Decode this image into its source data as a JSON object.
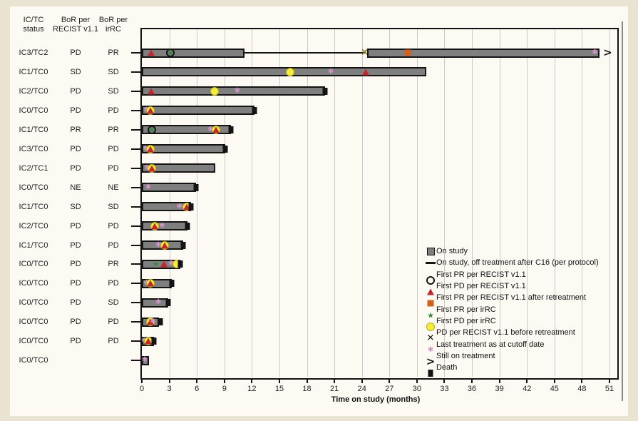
{
  "window": {
    "background": "#eae3d1",
    "card_background": "#fcfaf3"
  },
  "colors": {
    "bar_fill": "#7f7f7f",
    "bar_border": "#141414",
    "grid": "#c9c9c9",
    "pd_recist_red": "#c1272d",
    "pr_retreat_orange": "#d2611e",
    "pr_irrc_green": "#338a3e",
    "pd_irrc_yellow": "#f2ee3b",
    "last_treatment_pink": "#d294c4",
    "pd_before_retreat_olive": "#8f8a15",
    "black": "#141414"
  },
  "chart_data": {
    "type": "bar",
    "variant": "swimmer-plot",
    "title": "",
    "xlabel": "Time on study (months)",
    "xlim": [
      0,
      51
    ],
    "xtick_step": 3,
    "grid": true,
    "legend_position": "bottom-right",
    "columns": [
      [
        "IC/TC",
        "status"
      ],
      [
        "BoR per",
        "RECIST v1.1"
      ],
      [
        "BoR per",
        "irRC"
      ]
    ],
    "legend": [
      {
        "marker": "on_study",
        "label": "On study"
      },
      {
        "marker": "off_treatment_line",
        "label": "On study, off treatment after C16 (per protocol)"
      },
      {
        "marker": "pr_recist",
        "label": "First PR per RECIST v1.1"
      },
      {
        "marker": "pd_recist",
        "label": "First PD per RECIST v1.1"
      },
      {
        "marker": "pr_recist_retreat",
        "label": "First PR per RECIST v1.1 after retreatment"
      },
      {
        "marker": "pr_irrc",
        "label": "First PR per irRC"
      },
      {
        "marker": "pd_irrc",
        "label": "First PD per irRC"
      },
      {
        "marker": "pd_before_retreat",
        "label": "PD per RECIST v1.1 before retreatment"
      },
      {
        "marker": "last_treatment",
        "label": "Last treatment as at cutoff date"
      },
      {
        "marker": "still_on_treatment",
        "label": "Still on treatment"
      },
      {
        "marker": "death",
        "label": "Death"
      }
    ],
    "patients": [
      {
        "ic_tc": "IC3/TC2",
        "bor_recist": "PD",
        "bor_irrc": "PR",
        "bars": [
          [
            0,
            11.2
          ],
          [
            24.6,
            49.9
          ]
        ],
        "off_treatment_line": [
          11.2,
          24.3
        ],
        "markers": [
          {
            "t": "pd_recist",
            "x": 1.0
          },
          {
            "t": "pr_irrc",
            "x": 3.1
          },
          {
            "t": "pr_recist",
            "x": 3.1
          },
          {
            "t": "pd_before_retreat",
            "x": 24.3
          },
          {
            "t": "pr_recist_retreat",
            "x": 29.0
          },
          {
            "t": "last_treatment",
            "x": 49.4
          },
          {
            "t": "still_on_treatment",
            "x": 50.8
          }
        ]
      },
      {
        "ic_tc": "IC1/TC0",
        "bor_recist": "SD",
        "bor_irrc": "SD",
        "bars": [
          [
            0,
            31.0
          ]
        ],
        "markers": [
          {
            "t": "pd_irrc",
            "x": 16.2
          },
          {
            "t": "last_treatment",
            "x": 20.6
          },
          {
            "t": "pd_recist",
            "x": 24.4
          }
        ]
      },
      {
        "ic_tc": "IC2/TC0",
        "bor_recist": "PD",
        "bor_irrc": "SD",
        "bars": [
          [
            0,
            20.0
          ]
        ],
        "markers": [
          {
            "t": "pd_recist",
            "x": 1.0
          },
          {
            "t": "pd_irrc",
            "x": 7.9
          },
          {
            "t": "last_treatment",
            "x": 10.4
          },
          {
            "t": "death",
            "x": 20.0
          }
        ]
      },
      {
        "ic_tc": "IC0/TC0",
        "bor_recist": "PD",
        "bor_irrc": "PD",
        "bars": [
          [
            0,
            12.3
          ]
        ],
        "markers": [
          {
            "t": "last_treatment",
            "x": 0.5
          },
          {
            "t": "pd_irrc",
            "x": 0.9
          },
          {
            "t": "pd_recist",
            "x": 0.9
          },
          {
            "t": "death",
            "x": 12.3
          }
        ]
      },
      {
        "ic_tc": "IC1/TC0",
        "bor_recist": "PR",
        "bor_irrc": "PR",
        "bars": [
          [
            0,
            9.7
          ]
        ],
        "markers": [
          {
            "t": "pr_irrc",
            "x": 1.1
          },
          {
            "t": "pr_recist",
            "x": 1.1
          },
          {
            "t": "last_treatment",
            "x": 7.5
          },
          {
            "t": "pd_irrc",
            "x": 8.1
          },
          {
            "t": "pd_recist",
            "x": 8.1
          },
          {
            "t": "death",
            "x": 9.7
          }
        ]
      },
      {
        "ic_tc": "IC3/TC0",
        "bor_recist": "PD",
        "bor_irrc": "PD",
        "bars": [
          [
            0,
            9.1
          ]
        ],
        "markers": [
          {
            "t": "last_treatment",
            "x": 0.4
          },
          {
            "t": "pd_irrc",
            "x": 0.9
          },
          {
            "t": "pd_recist",
            "x": 0.9
          },
          {
            "t": "death",
            "x": 9.1
          }
        ]
      },
      {
        "ic_tc": "IC2/TC1",
        "bor_recist": "PD",
        "bor_irrc": "PD",
        "bars": [
          [
            0,
            8.0
          ]
        ],
        "markers": [
          {
            "t": "last_treatment",
            "x": 0.6
          },
          {
            "t": "pd_irrc",
            "x": 1.1
          },
          {
            "t": "pd_recist",
            "x": 1.1
          }
        ]
      },
      {
        "ic_tc": "IC0/TC0",
        "bor_recist": "NE",
        "bor_irrc": "NE",
        "bars": [
          [
            0,
            5.9
          ]
        ],
        "markers": [
          {
            "t": "last_treatment",
            "x": 0.7
          },
          {
            "t": "death",
            "x": 5.9
          }
        ]
      },
      {
        "ic_tc": "IC1/TC0",
        "bor_recist": "SD",
        "bor_irrc": "SD",
        "bars": [
          [
            0,
            5.4
          ]
        ],
        "markers": [
          {
            "t": "last_treatment",
            "x": 4.1
          },
          {
            "t": "pd_irrc",
            "x": 4.9
          },
          {
            "t": "pd_recist",
            "x": 4.9
          },
          {
            "t": "death",
            "x": 5.4
          }
        ]
      },
      {
        "ic_tc": "IC2/TC0",
        "bor_recist": "PD",
        "bor_irrc": "PD",
        "bars": [
          [
            0,
            5.0
          ]
        ],
        "markers": [
          {
            "t": "pd_irrc",
            "x": 1.4
          },
          {
            "t": "pd_recist",
            "x": 1.4
          },
          {
            "t": "last_treatment",
            "x": 2.2
          },
          {
            "t": "death",
            "x": 5.0
          }
        ]
      },
      {
        "ic_tc": "IC1/TC0",
        "bor_recist": "PD",
        "bor_irrc": "PD",
        "bars": [
          [
            0,
            4.5
          ]
        ],
        "markers": [
          {
            "t": "last_treatment",
            "x": 1.8
          },
          {
            "t": "pd_irrc",
            "x": 2.5
          },
          {
            "t": "pd_recist",
            "x": 2.5
          },
          {
            "t": "death",
            "x": 4.5
          }
        ]
      },
      {
        "ic_tc": "IC0/TC0",
        "bor_recist": "PD",
        "bor_irrc": "PR",
        "bars": [
          [
            0,
            4.2
          ]
        ],
        "markers": [
          {
            "t": "pr_irrc",
            "x": 1.5
          },
          {
            "t": "pd_recist",
            "x": 2.4
          },
          {
            "t": "last_treatment",
            "x": 3.2
          },
          {
            "t": "pd_irrc",
            "x": 3.8
          },
          {
            "t": "death",
            "x": 4.2
          }
        ]
      },
      {
        "ic_tc": "IC0/TC0",
        "bor_recist": "PD",
        "bor_irrc": "PD",
        "bars": [
          [
            0,
            3.3
          ]
        ],
        "markers": [
          {
            "t": "last_treatment",
            "x": 0.5
          },
          {
            "t": "pd_irrc",
            "x": 0.9
          },
          {
            "t": "pd_recist",
            "x": 0.9
          },
          {
            "t": "death",
            "x": 3.3
          }
        ]
      },
      {
        "ic_tc": "IC0/TC0",
        "bor_recist": "PD",
        "bor_irrc": "SD",
        "bars": [
          [
            0,
            2.9
          ]
        ],
        "markers": [
          {
            "t": "last_treatment",
            "x": 1.8
          },
          {
            "t": "death",
            "x": 2.9
          }
        ]
      },
      {
        "ic_tc": "IC0/TC0",
        "bor_recist": "PD",
        "bor_irrc": "PD",
        "bars": [
          [
            0,
            1.9
          ]
        ],
        "markers": [
          {
            "t": "pd_irrc",
            "x": 0.9
          },
          {
            "t": "pd_recist",
            "x": 0.9
          },
          {
            "t": "last_treatment",
            "x": 1.2
          },
          {
            "t": "death",
            "x": 2.0
          }
        ]
      },
      {
        "ic_tc": "IC0/TC0",
        "bor_recist": "PD",
        "bor_irrc": "PD",
        "bars": [
          [
            0,
            1.3
          ]
        ],
        "markers": [
          {
            "t": "last_treatment",
            "x": 0.25
          },
          {
            "t": "pd_irrc",
            "x": 0.7
          },
          {
            "t": "pd_recist",
            "x": 0.7
          },
          {
            "t": "death",
            "x": 1.35
          }
        ]
      },
      {
        "ic_tc": "IC0/TC0",
        "bor_recist": "",
        "bor_irrc": "",
        "bars": [
          [
            0,
            0.8
          ]
        ],
        "markers": [
          {
            "t": "last_treatment",
            "x": 0.3
          }
        ]
      }
    ]
  }
}
